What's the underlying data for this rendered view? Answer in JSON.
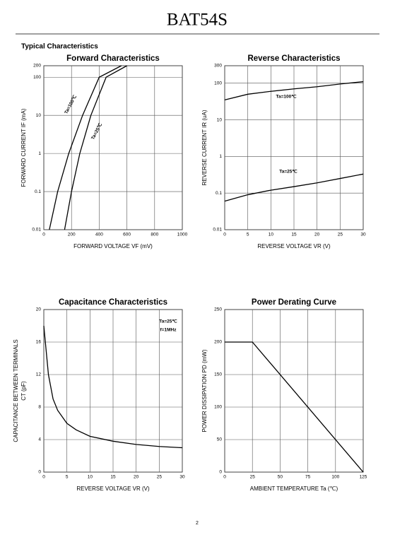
{
  "header": {
    "title": "BAT54S"
  },
  "section_title": "Typical Characteristics",
  "page_number": "2",
  "chart_data": [
    {
      "type": "line",
      "title": "Forward   Characteristics",
      "x_label": "FORWARD VOLTAGE   VF   (mV)",
      "y_label": [
        "FORWARD CURRENT   IF   (mA)"
      ],
      "xlim": [
        0,
        1000
      ],
      "xticks": [
        0,
        200,
        400,
        600,
        800,
        1000
      ],
      "ylim": [
        0.01,
        200
      ],
      "yticks": [
        0.01,
        0.1,
        1,
        10,
        100,
        200
      ],
      "log_y": true,
      "grid": true,
      "series": [
        {
          "name": "Ta=100℃",
          "color": "#000000",
          "x": [
            40,
            100,
            180,
            280,
            400,
            560
          ],
          "values": [
            0.01,
            0.1,
            1,
            10,
            100,
            200
          ]
        },
        {
          "name": "Ta=25℃",
          "color": "#000000",
          "x": [
            150,
            200,
            260,
            340,
            450,
            600
          ],
          "values": [
            0.01,
            0.1,
            1,
            10,
            100,
            200
          ]
        }
      ]
    },
    {
      "type": "line",
      "title": "Reverse   Characteristics",
      "x_label": "REVERSE VOLTAGE   VR   (V)",
      "y_label": [
        "REVERSE CURRENT   IR   (uA)"
      ],
      "xlim": [
        0,
        30
      ],
      "xticks": [
        0,
        5,
        10,
        15,
        20,
        25,
        30
      ],
      "ylim": [
        0.01,
        300
      ],
      "yticks": [
        0.01,
        0.1,
        1,
        10,
        100,
        300
      ],
      "log_y": true,
      "grid": true,
      "series": [
        {
          "name": "Ta=100℃",
          "color": "#000000",
          "x": [
            0,
            5,
            10,
            15,
            20,
            25,
            30
          ],
          "values": [
            35,
            50,
            60,
            70,
            80,
            95,
            110
          ]
        },
        {
          "name": "Ta=25℃",
          "color": "#000000",
          "x": [
            0,
            5,
            10,
            15,
            20,
            25,
            30
          ],
          "values": [
            0.06,
            0.09,
            0.12,
            0.15,
            0.19,
            0.25,
            0.33
          ]
        }
      ]
    },
    {
      "type": "line",
      "title": "Capacitance Characteristics",
      "x_label": "REVERSE VOLTAGE   VR   (V)",
      "y_label": [
        "CAPACITANCE BETWEEN TERMINALS",
        "CT   (pF)"
      ],
      "xlim": [
        0,
        30
      ],
      "xticks": [
        0,
        5,
        10,
        15,
        20,
        25,
        30
      ],
      "ylim": [
        0,
        20
      ],
      "yticks": [
        0,
        4,
        8,
        12,
        16,
        20
      ],
      "grid": true,
      "annotations": [
        "Ta=25℃",
        "f=1MHz"
      ],
      "series": [
        {
          "color": "#000000",
          "x": [
            0,
            0.5,
            1,
            2,
            3,
            5,
            7,
            10,
            15,
            20,
            25,
            30
          ],
          "values": [
            18,
            15,
            12,
            9,
            7.6,
            6,
            5.2,
            4.4,
            3.8,
            3.4,
            3.15,
            3
          ]
        }
      ]
    },
    {
      "type": "line",
      "title": "Power Derating Curve",
      "x_label": "AMBIENT TEMPERATURE   Ta   (℃)",
      "y_label": [
        "POWER DISSIPATION   PD   (mW)"
      ],
      "xlim": [
        0,
        125
      ],
      "xticks": [
        0,
        25,
        50,
        75,
        100,
        125
      ],
      "ylim": [
        0,
        250
      ],
      "yticks": [
        0,
        50,
        100,
        150,
        200,
        250
      ],
      "grid": true,
      "series": [
        {
          "color": "#000000",
          "x": [
            0,
            25,
            125
          ],
          "values": [
            200,
            200,
            0
          ]
        }
      ]
    }
  ]
}
